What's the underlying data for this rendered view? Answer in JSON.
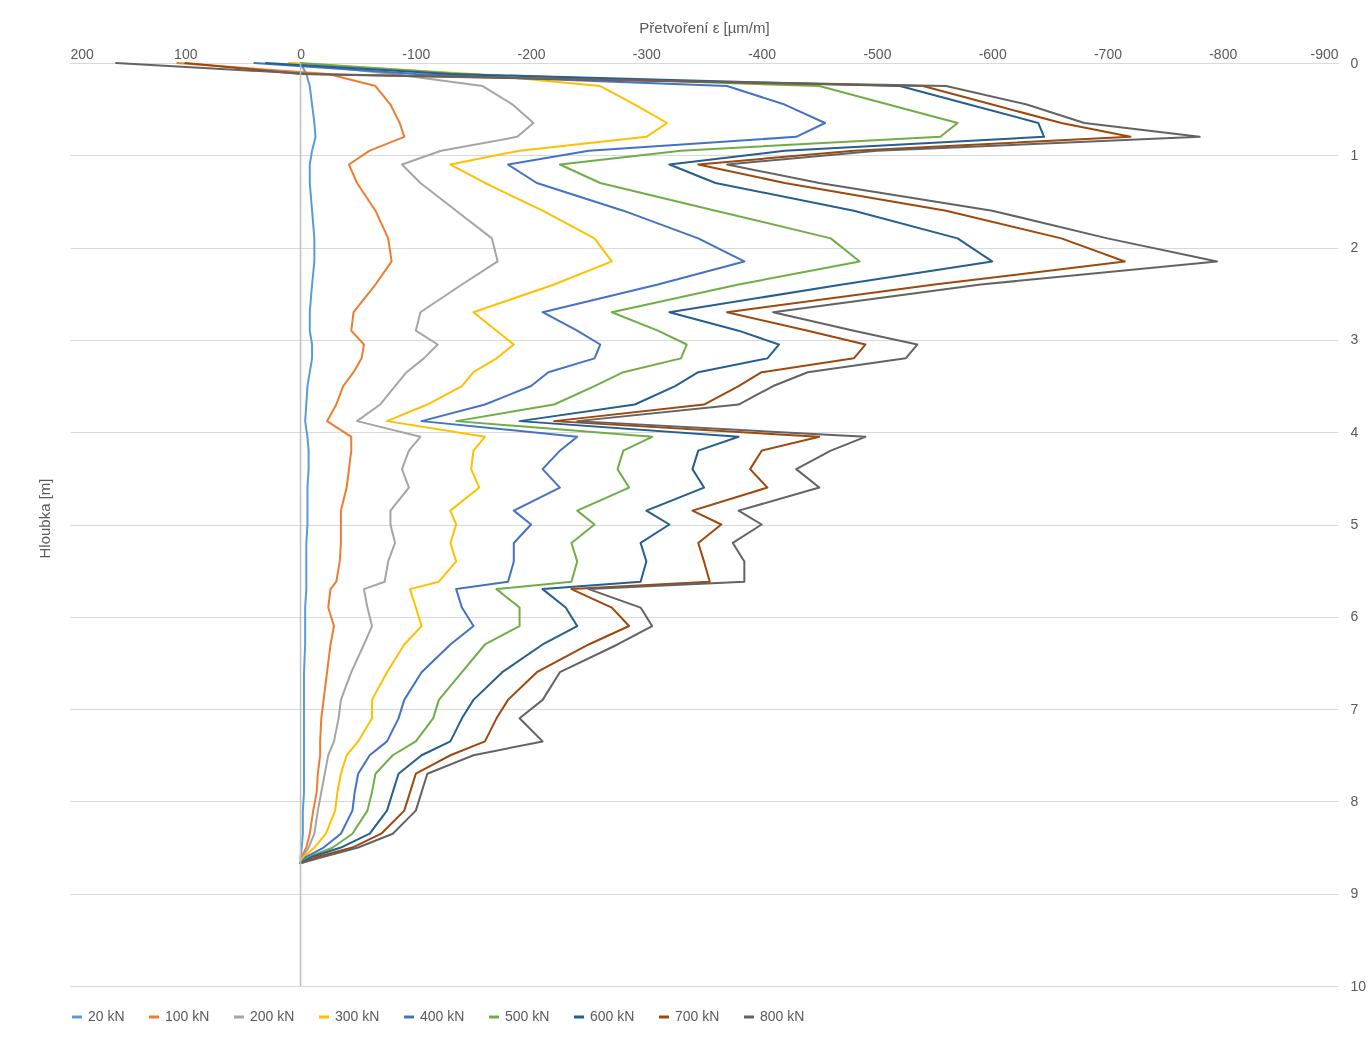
{
  "chart_data": {
    "type": "line",
    "xlabel": "Přetvoření ε [µm/m]",
    "ylabel": "Hloubka [m]",
    "xlim": [
      200,
      -900
    ],
    "xticks": [
      200,
      100,
      0,
      -100,
      -200,
      -300,
      -400,
      -500,
      -600,
      -700,
      -800,
      -900
    ],
    "ylim": [
      10,
      0
    ],
    "yticks": [
      0,
      1,
      2,
      3,
      4,
      5,
      6,
      7,
      8,
      9,
      10
    ],
    "grid": "y",
    "legend": "bottom",
    "line_style": "solid",
    "marker": "none",
    "ref_lines": [
      {
        "axis": "x",
        "value": 0,
        "color": "#bfbfbf"
      }
    ],
    "series": [
      {
        "name": "20 kN",
        "color": "#5b9bd5",
        "x": [
          0,
          -5,
          -8,
          -10,
          -12,
          -13,
          -10,
          -8,
          -8,
          -10,
          -12,
          -12,
          -10,
          -8,
          -8,
          -10,
          -10,
          -8,
          -6,
          -5,
          -4,
          -6,
          -7,
          -7,
          -6,
          -6,
          -6,
          -5,
          -5,
          -5,
          -5,
          -4,
          -4,
          -4,
          -3,
          -3,
          -3,
          -3,
          -3,
          -3,
          -3,
          -2,
          -2,
          -1,
          0,
          0
        ],
        "values": [
          0,
          0.12,
          0.25,
          0.45,
          0.65,
          0.8,
          0.95,
          1.1,
          1.3,
          1.6,
          1.9,
          2.15,
          2.4,
          2.7,
          2.9,
          3.05,
          3.2,
          3.35,
          3.5,
          3.7,
          3.88,
          4.05,
          4.2,
          4.4,
          4.6,
          4.85,
          5.0,
          5.2,
          5.4,
          5.62,
          5.7,
          5.9,
          6.1,
          6.3,
          6.6,
          6.9,
          7.1,
          7.35,
          7.5,
          7.7,
          7.9,
          8.1,
          8.35,
          8.5,
          8.6,
          8.67
        ]
      },
      {
        "name": "100 kN",
        "color": "#ed7d31",
        "x": [
          107,
          -24,
          -65,
          -78,
          -86,
          -90,
          -60,
          -42,
          -49,
          -65,
          -76,
          -79,
          -65,
          -46,
          -44,
          -55,
          -53,
          -46,
          -37,
          -31,
          -23,
          -44,
          -44,
          -42,
          -40,
          -35,
          -35,
          -35,
          -34,
          -31,
          -26,
          -24,
          -29,
          -26,
          -23,
          -20,
          -18,
          -17,
          -17,
          -15,
          -14,
          -11,
          -8,
          -5,
          -1,
          0
        ],
        "values": [
          0,
          0.12,
          0.25,
          0.45,
          0.65,
          0.8,
          0.95,
          1.1,
          1.3,
          1.6,
          1.9,
          2.15,
          2.4,
          2.7,
          2.9,
          3.05,
          3.2,
          3.35,
          3.5,
          3.7,
          3.88,
          4.05,
          4.2,
          4.4,
          4.6,
          4.85,
          5.0,
          5.2,
          5.4,
          5.62,
          5.7,
          5.9,
          6.1,
          6.3,
          6.6,
          6.9,
          7.1,
          7.35,
          7.5,
          7.7,
          7.9,
          8.1,
          8.35,
          8.5,
          8.6,
          8.67
        ]
      },
      {
        "name": "200 kN",
        "color": "#a5a5a5",
        "x": [
          10,
          -80,
          -158,
          -184,
          -202,
          -188,
          -122,
          -88,
          -104,
          -135,
          -166,
          -171,
          -140,
          -104,
          -100,
          -119,
          -107,
          -92,
          -82,
          -69,
          -49,
          -104,
          -94,
          -88,
          -94,
          -78,
          -78,
          -82,
          -76,
          -73,
          -55,
          -58,
          -62,
          -55,
          -44,
          -35,
          -33,
          -29,
          -24,
          -21,
          -18,
          -15,
          -12,
          -7,
          -2,
          0
        ],
        "values": [
          0,
          0.12,
          0.25,
          0.45,
          0.65,
          0.8,
          0.95,
          1.1,
          1.3,
          1.6,
          1.9,
          2.15,
          2.4,
          2.7,
          2.9,
          3.05,
          3.2,
          3.35,
          3.5,
          3.7,
          3.88,
          4.05,
          4.2,
          4.4,
          4.6,
          4.85,
          5.0,
          5.2,
          5.4,
          5.62,
          5.7,
          5.9,
          6.1,
          6.3,
          6.6,
          6.9,
          7.1,
          7.35,
          7.5,
          7.7,
          7.9,
          8.1,
          8.35,
          8.5,
          8.6,
          8.67
        ]
      },
      {
        "name": "300 kN",
        "color": "#ffc000",
        "x": [
          10,
          -150,
          -260,
          -290,
          -318,
          -300,
          -190,
          -130,
          -160,
          -210,
          -255,
          -270,
          -220,
          -150,
          -170,
          -185,
          -170,
          -150,
          -140,
          -110,
          -75,
          -160,
          -150,
          -148,
          -155,
          -130,
          -135,
          -130,
          -135,
          -120,
          -95,
          -100,
          -105,
          -90,
          -75,
          -62,
          -62,
          -50,
          -40,
          -35,
          -32,
          -30,
          -22,
          -12,
          -3,
          0
        ],
        "values": [
          0,
          0.12,
          0.25,
          0.45,
          0.65,
          0.8,
          0.95,
          1.1,
          1.3,
          1.6,
          1.9,
          2.15,
          2.4,
          2.7,
          2.9,
          3.05,
          3.2,
          3.35,
          3.5,
          3.7,
          3.88,
          4.05,
          4.2,
          4.4,
          4.6,
          4.85,
          5.0,
          5.2,
          5.4,
          5.62,
          5.7,
          5.9,
          6.1,
          6.3,
          6.6,
          6.9,
          7.1,
          7.35,
          7.5,
          7.7,
          7.9,
          8.1,
          8.35,
          8.5,
          8.6,
          8.67
        ]
      },
      {
        "name": "400 kN",
        "color": "#4472c4",
        "x": [
          40,
          -100,
          -370,
          -420,
          -455,
          -430,
          -250,
          -180,
          -205,
          -280,
          -345,
          -385,
          -310,
          -210,
          -240,
          -260,
          -255,
          -215,
          -200,
          -160,
          -105,
          -240,
          -225,
          -210,
          -225,
          -185,
          -200,
          -185,
          -185,
          -180,
          -135,
          -140,
          -150,
          -130,
          -105,
          -90,
          -85,
          -75,
          -60,
          -50,
          -47,
          -45,
          -35,
          -20,
          -5,
          0
        ],
        "values": [
          0,
          0.12,
          0.25,
          0.45,
          0.65,
          0.8,
          0.95,
          1.1,
          1.3,
          1.6,
          1.9,
          2.15,
          2.4,
          2.7,
          2.9,
          3.05,
          3.2,
          3.35,
          3.5,
          3.7,
          3.88,
          4.05,
          4.2,
          4.4,
          4.6,
          4.85,
          5.0,
          5.2,
          5.4,
          5.62,
          5.7,
          5.9,
          6.1,
          6.3,
          6.6,
          6.9,
          7.1,
          7.35,
          7.5,
          7.7,
          7.9,
          8.1,
          8.35,
          8.5,
          8.6,
          8.67
        ]
      },
      {
        "name": "500 kN",
        "color": "#70ad47",
        "x": [
          0,
          -140,
          -450,
          -510,
          -570,
          -555,
          -330,
          -225,
          -260,
          -360,
          -460,
          -485,
          -380,
          -270,
          -310,
          -335,
          -330,
          -280,
          -255,
          -220,
          -135,
          -305,
          -280,
          -275,
          -285,
          -240,
          -255,
          -235,
          -240,
          -235,
          -170,
          -190,
          -190,
          -160,
          -140,
          -120,
          -115,
          -100,
          -80,
          -65,
          -62,
          -58,
          -45,
          -28,
          -8,
          0
        ],
        "values": [
          0,
          0.12,
          0.25,
          0.45,
          0.65,
          0.8,
          0.95,
          1.1,
          1.3,
          1.6,
          1.9,
          2.15,
          2.4,
          2.7,
          2.9,
          3.05,
          3.2,
          3.35,
          3.5,
          3.7,
          3.88,
          4.05,
          4.2,
          4.4,
          4.6,
          4.85,
          5.0,
          5.2,
          5.4,
          5.62,
          5.7,
          5.9,
          6.1,
          6.3,
          6.6,
          6.9,
          7.1,
          7.35,
          7.5,
          7.7,
          7.9,
          8.1,
          8.35,
          8.5,
          8.6,
          8.67
        ]
      },
      {
        "name": "600 kN",
        "color": "#255e91",
        "x": [
          30,
          -130,
          -520,
          -580,
          -640,
          -645,
          -420,
          -320,
          -360,
          -480,
          -570,
          -600,
          -470,
          -320,
          -380,
          -415,
          -405,
          -345,
          -325,
          -290,
          -190,
          -380,
          -345,
          -340,
          -350,
          -300,
          -320,
          -295,
          -300,
          -295,
          -210,
          -230,
          -240,
          -210,
          -175,
          -150,
          -140,
          -130,
          -105,
          -85,
          -80,
          -75,
          -60,
          -35,
          -10,
          0
        ],
        "values": [
          0,
          0.12,
          0.25,
          0.45,
          0.65,
          0.8,
          0.95,
          1.1,
          1.3,
          1.6,
          1.9,
          2.15,
          2.4,
          2.7,
          2.9,
          3.05,
          3.2,
          3.35,
          3.5,
          3.7,
          3.88,
          4.05,
          4.2,
          4.4,
          4.6,
          4.85,
          5.0,
          5.2,
          5.4,
          5.62,
          5.7,
          5.9,
          6.1,
          6.3,
          6.6,
          6.9,
          7.1,
          7.35,
          7.5,
          7.7,
          7.9,
          8.1,
          8.35,
          8.5,
          8.6,
          8.67
        ]
      },
      {
        "name": "700 kN",
        "color": "#9e480e",
        "x": [
          100,
          0,
          -540,
          -600,
          -660,
          -720,
          -480,
          -345,
          -420,
          -560,
          -660,
          -715,
          -550,
          -370,
          -440,
          -490,
          -480,
          -400,
          -380,
          -350,
          -220,
          -450,
          -400,
          -390,
          -405,
          -340,
          -365,
          -345,
          -350,
          -355,
          -235,
          -270,
          -285,
          -250,
          -205,
          -180,
          -170,
          -160,
          -130,
          -100,
          -95,
          -90,
          -70,
          -45,
          -15,
          0
        ],
        "values": [
          0,
          0.12,
          0.25,
          0.45,
          0.65,
          0.8,
          0.95,
          1.1,
          1.3,
          1.6,
          1.9,
          2.15,
          2.4,
          2.7,
          2.9,
          3.05,
          3.2,
          3.35,
          3.5,
          3.7,
          3.88,
          4.05,
          4.2,
          4.4,
          4.6,
          4.85,
          5.0,
          5.2,
          5.4,
          5.62,
          5.7,
          5.9,
          6.1,
          6.3,
          6.6,
          6.9,
          7.1,
          7.35,
          7.5,
          7.7,
          7.9,
          8.1,
          8.35,
          8.5,
          8.6,
          8.67
        ]
      },
      {
        "name": "800 kN",
        "color": "#636363",
        "x": [
          160,
          -10,
          -560,
          -630,
          -680,
          -780,
          -500,
          -370,
          -450,
          -600,
          -700,
          -795,
          -590,
          -410,
          -480,
          -535,
          -525,
          -440,
          -410,
          -380,
          -240,
          -490,
          -460,
          -430,
          -450,
          -380,
          -400,
          -375,
          -385,
          -385,
          -250,
          -295,
          -305,
          -275,
          -225,
          -210,
          -190,
          -210,
          -150,
          -110,
          -105,
          -100,
          -80,
          -50,
          -20,
          0
        ],
        "values": [
          0,
          0.12,
          0.25,
          0.45,
          0.65,
          0.8,
          0.95,
          1.1,
          1.3,
          1.6,
          1.9,
          2.15,
          2.4,
          2.7,
          2.9,
          3.05,
          3.2,
          3.35,
          3.5,
          3.7,
          3.88,
          4.05,
          4.2,
          4.4,
          4.6,
          4.85,
          5.0,
          5.2,
          5.4,
          5.62,
          5.7,
          5.9,
          6.1,
          6.3,
          6.6,
          6.9,
          7.1,
          7.35,
          7.5,
          7.7,
          7.9,
          8.1,
          8.35,
          8.5,
          8.6,
          8.67
        ]
      }
    ]
  }
}
